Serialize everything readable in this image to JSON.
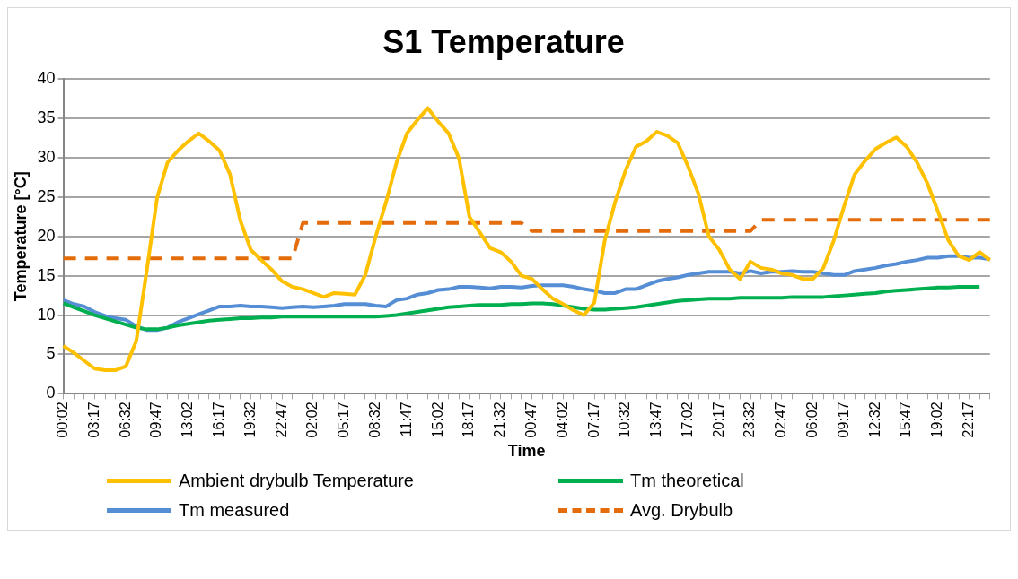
{
  "chart_data": {
    "type": "line",
    "title": "S1 Temperature",
    "xlabel": "Time",
    "ylabel": "Temperature [°C]",
    "categories": [
      "00:02",
      null,
      null,
      "03:17",
      null,
      null,
      "06:32",
      null,
      null,
      "09:47",
      null,
      null,
      "13:02",
      null,
      null,
      "16:17",
      null,
      null,
      "19:32",
      null,
      null,
      "22:47",
      null,
      null,
      "02:02",
      null,
      null,
      "05:17",
      null,
      null,
      "08:32",
      null,
      null,
      "11:47",
      null,
      null,
      "15:02",
      null,
      null,
      "18:17",
      null,
      null,
      "21:32",
      null,
      null,
      "00:47",
      null,
      null,
      "04:02",
      null,
      null,
      "07:17",
      null,
      null,
      "10:32",
      null,
      null,
      "13:47",
      null,
      null,
      "17:02",
      null,
      null,
      "20:17",
      null,
      null,
      "23:32",
      null,
      null,
      "02:47",
      null,
      null,
      "06:02",
      null,
      null,
      "09:17",
      null,
      null,
      "12:32",
      null,
      null,
      "15:47",
      null,
      null,
      "19:02",
      null,
      null,
      "22:17",
      null,
      null
    ],
    "series": [
      {
        "name": "Ambient drybulb Temperature",
        "color": "#ffc000",
        "values": [
          6.1,
          5.2,
          4.2,
          3.2,
          3.0,
          3.0,
          3.5,
          6.7,
          15.6,
          24.9,
          29.4,
          30.9,
          32.1,
          33.1,
          32.1,
          30.9,
          27.9,
          22.0,
          18.3,
          17.0,
          15.8,
          14.3,
          13.6,
          13.3,
          12.8,
          12.3,
          12.8,
          12.7,
          12.6,
          15.1,
          20.0,
          24.4,
          29.4,
          33.1,
          34.8,
          36.3,
          34.6,
          33.1,
          29.9,
          22.5,
          20.5,
          18.5,
          18.0,
          16.8,
          15.0,
          14.6,
          13.3,
          12.1,
          11.4,
          10.6,
          10.0,
          11.6,
          19.5,
          24.4,
          28.4,
          31.4,
          32.1,
          33.3,
          32.8,
          31.9,
          28.9,
          25.4,
          20.0,
          18.3,
          15.8,
          14.6,
          16.8,
          16.0,
          15.8,
          15.3,
          15.1,
          14.6,
          14.6,
          16.0,
          19.5,
          23.9,
          27.9,
          29.6,
          31.1,
          31.9,
          32.6,
          31.4,
          29.4,
          26.7,
          23.2,
          19.5,
          17.5,
          17.0,
          18.0,
          17.0
        ]
      },
      {
        "name": "Tm theoretical",
        "color": "#00b050",
        "values": [
          11.5,
          11.0,
          10.5,
          10.0,
          9.6,
          9.2,
          8.8,
          8.4,
          8.2,
          8.2,
          8.4,
          8.7,
          8.9,
          9.1,
          9.3,
          9.4,
          9.5,
          9.6,
          9.6,
          9.7,
          9.7,
          9.8,
          9.8,
          9.8,
          9.8,
          9.8,
          9.8,
          9.8,
          9.8,
          9.8,
          9.8,
          9.9,
          10.0,
          10.2,
          10.4,
          10.6,
          10.8,
          11.0,
          11.1,
          11.2,
          11.3,
          11.3,
          11.3,
          11.4,
          11.4,
          11.5,
          11.5,
          11.4,
          11.2,
          11.0,
          10.8,
          10.7,
          10.7,
          10.8,
          10.9,
          11.0,
          11.2,
          11.4,
          11.6,
          11.8,
          11.9,
          12.0,
          12.1,
          12.1,
          12.1,
          12.2,
          12.2,
          12.2,
          12.2,
          12.2,
          12.3,
          12.3,
          12.3,
          12.3,
          12.4,
          12.5,
          12.6,
          12.7,
          12.8,
          13.0,
          13.1,
          13.2,
          13.3,
          13.4,
          13.5,
          13.5,
          13.6,
          13.6,
          13.6,
          null
        ]
      },
      {
        "name": "Tm measured",
        "color": "#558ed5",
        "values": [
          11.9,
          11.4,
          11.1,
          10.4,
          9.9,
          9.6,
          9.4,
          8.6,
          8.1,
          8.1,
          8.4,
          9.1,
          9.6,
          10.1,
          10.6,
          11.1,
          11.1,
          11.2,
          11.1,
          11.1,
          11.0,
          10.9,
          11.0,
          11.1,
          11.0,
          11.1,
          11.2,
          11.4,
          11.4,
          11.4,
          11.2,
          11.1,
          11.9,
          12.1,
          12.6,
          12.8,
          13.2,
          13.3,
          13.6,
          13.6,
          13.5,
          13.4,
          13.6,
          13.6,
          13.5,
          13.7,
          13.8,
          13.8,
          13.8,
          13.6,
          13.3,
          13.1,
          12.8,
          12.8,
          13.3,
          13.3,
          13.8,
          14.3,
          14.6,
          14.8,
          15.1,
          15.3,
          15.5,
          15.5,
          15.5,
          15.3,
          15.6,
          15.3,
          15.5,
          15.5,
          15.6,
          15.5,
          15.5,
          15.3,
          15.1,
          15.1,
          15.6,
          15.8,
          16.0,
          16.3,
          16.5,
          16.8,
          17.0,
          17.3,
          17.3,
          17.5,
          17.5,
          17.3,
          17.3,
          17.1
        ]
      },
      {
        "name": "Avg. Drybulb",
        "color": "#e46c0a",
        "line_style": "dashed",
        "values": [
          17.2,
          17.2,
          17.2,
          17.2,
          17.2,
          17.2,
          17.2,
          17.2,
          17.2,
          17.2,
          17.2,
          17.2,
          17.2,
          17.2,
          17.2,
          17.2,
          17.2,
          17.2,
          17.2,
          17.2,
          17.2,
          17.2,
          17.2,
          21.7,
          21.7,
          21.7,
          21.7,
          21.7,
          21.7,
          21.7,
          21.7,
          21.7,
          21.7,
          21.7,
          21.7,
          21.7,
          21.7,
          21.7,
          21.7,
          21.7,
          21.7,
          21.7,
          21.7,
          21.7,
          21.7,
          20.7,
          20.7,
          20.7,
          20.7,
          20.7,
          20.7,
          20.7,
          20.7,
          20.7,
          20.7,
          20.7,
          20.7,
          20.7,
          20.7,
          20.7,
          20.7,
          20.7,
          20.7,
          20.7,
          20.7,
          20.7,
          20.7,
          22.1,
          22.1,
          22.1,
          22.1,
          22.1,
          22.1,
          22.1,
          22.1,
          22.1,
          22.1,
          22.1,
          22.1,
          22.1,
          22.1,
          22.1,
          22.1,
          22.1,
          22.1,
          22.1,
          22.1,
          22.1,
          22.1,
          22.1
        ]
      }
    ],
    "ylim": [
      0,
      40
    ],
    "yticks": [
      0,
      5,
      10,
      15,
      20,
      25,
      30,
      35,
      40
    ],
    "grid": "y",
    "legend": "bottom",
    "marker": "none",
    "line_style": "solid"
  }
}
